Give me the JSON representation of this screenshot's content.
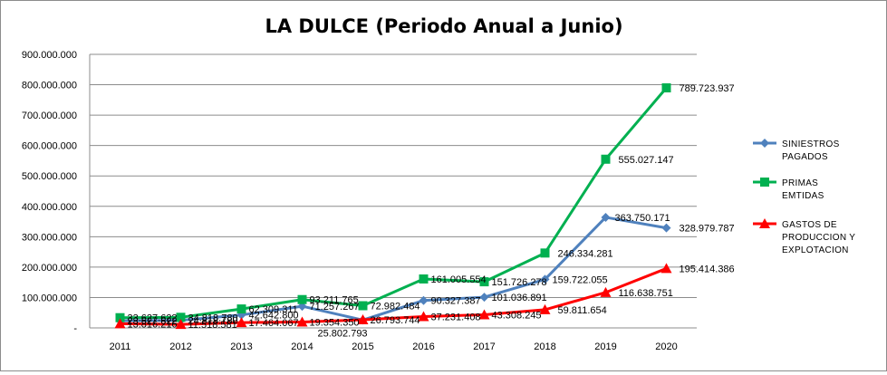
{
  "chart_data": {
    "type": "line",
    "title": "LA DULCE (Periodo Anual a Junio)",
    "categories": [
      "2011",
      "2012",
      "2013",
      "2014",
      "2015",
      "2016",
      "2017",
      "2018",
      "2019",
      "2020"
    ],
    "y_tick_labels": [
      "-",
      "100.000.000",
      "200.000.000",
      "300.000.000",
      "400.000.000",
      "500.000.000",
      "600.000.000",
      "700.000.000",
      "800.000.000",
      "900.000.000"
    ],
    "ylim": [
      0,
      900000000
    ],
    "grid": true,
    "legend_position": "right",
    "series": [
      {
        "name": "SINIESTROS PAGADOS",
        "color": "#4f81bd",
        "marker": "diamond",
        "values": [
          23627622,
          24818780,
          42642800,
          71257267,
          25802793,
          90327387,
          101036891,
          159722055,
          363750171,
          328979787
        ],
        "labels": [
          "23.627.622",
          "24.818.780",
          "42.642.800",
          "71.257.267",
          "25.802.793",
          "90.327.387",
          "101.036.891",
          "159.722.055",
          "363.750.171",
          "328.979.787"
        ]
      },
      {
        "name": "PRIMAS EMTIDAS",
        "color": "#00b050",
        "marker": "square",
        "values": [
          33627622,
          34818780,
          62309311,
          93211765,
          72982484,
          161005554,
          151726278,
          246334281,
          555027147,
          789723937
        ],
        "labels": [
          "33.627.622",
          "34.818.780",
          "62.309.311",
          "93.211.765",
          "72.982.484",
          "161.005.554",
          "151.726.278",
          "246.334.281",
          "555.027.147",
          "789.723.937"
        ]
      },
      {
        "name": "GASTOS DE PRODUCCION Y EXPLOTACION",
        "color": "#ff0000",
        "marker": "triangle",
        "values": [
          13816216,
          11518581,
          17464067,
          19354350,
          26793744,
          37231408,
          43308245,
          59811654,
          116638751,
          195414386
        ],
        "labels": [
          "13.816.216",
          "11.518.581",
          "17.464.067",
          "19.354.350",
          "26.793.744",
          "37.231.408",
          "43.308.245",
          "59.811.654",
          "116.638.751",
          "195.414.386"
        ]
      }
    ],
    "legend": [
      {
        "lines": [
          "SINIESTROS",
          "PAGADOS"
        ]
      },
      {
        "lines": [
          "PRIMAS",
          "EMTIDAS"
        ]
      },
      {
        "lines": [
          "GASTOS DE",
          "PRODUCCION Y",
          "EXPLOTACION"
        ]
      }
    ]
  }
}
